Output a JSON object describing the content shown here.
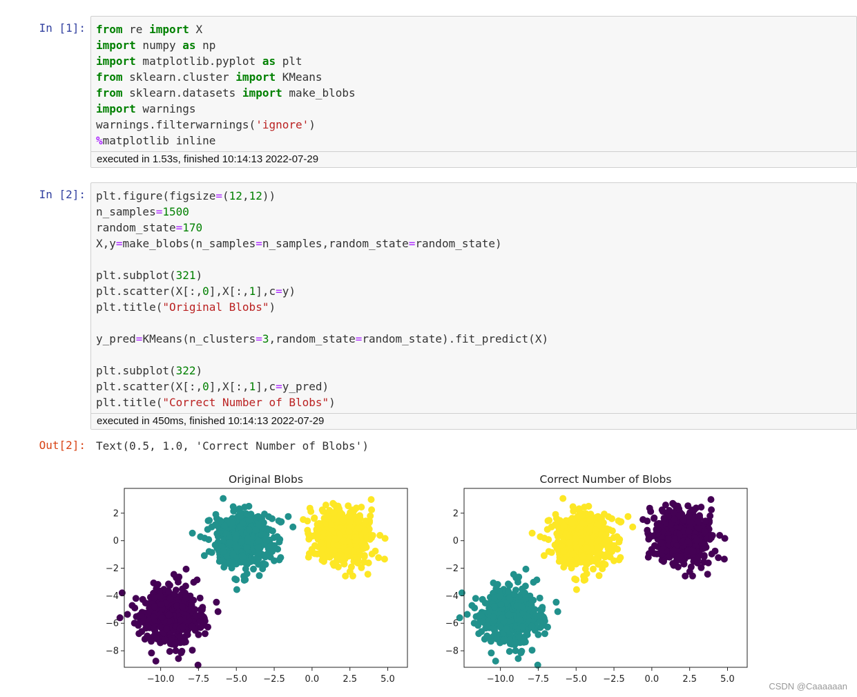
{
  "cells": [
    {
      "prompt": "In  [1]:",
      "lines": [
        [
          [
            "kw",
            "from"
          ],
          [
            "t",
            " re "
          ],
          [
            "kw",
            "import"
          ],
          [
            "t",
            " X"
          ]
        ],
        [
          [
            "kw",
            "import"
          ],
          [
            "t",
            " numpy "
          ],
          [
            "kw",
            "as"
          ],
          [
            "t",
            " np"
          ]
        ],
        [
          [
            "kw",
            "import"
          ],
          [
            "t",
            " matplotlib.pyplot "
          ],
          [
            "kw",
            "as"
          ],
          [
            "t",
            " plt"
          ]
        ],
        [
          [
            "kw",
            "from"
          ],
          [
            "t",
            " sklearn.cluster "
          ],
          [
            "kw",
            "import"
          ],
          [
            "t",
            " KMeans"
          ]
        ],
        [
          [
            "kw",
            "from"
          ],
          [
            "t",
            " sklearn.datasets "
          ],
          [
            "kw",
            "import"
          ],
          [
            "t",
            " make_blobs"
          ]
        ],
        [
          [
            "kw",
            "import"
          ],
          [
            "t",
            " warnings"
          ]
        ],
        [
          [
            "t",
            "warnings.filterwarnings("
          ],
          [
            "str",
            "'ignore'"
          ],
          [
            "t",
            ")"
          ]
        ],
        [
          [
            "magic",
            "%"
          ],
          [
            "t",
            "matplotlib inline"
          ]
        ]
      ],
      "exec": "executed in 1.53s, finished 10:14:13 2022-07-29"
    },
    {
      "prompt": "In  [2]:",
      "lines": [
        [
          [
            "t",
            "plt.figure(figsize"
          ],
          [
            "op",
            "="
          ],
          [
            "t",
            "("
          ],
          [
            "num",
            "12"
          ],
          [
            "t",
            ","
          ],
          [
            "num",
            "12"
          ],
          [
            "t",
            "))"
          ]
        ],
        [
          [
            "t",
            "n_samples"
          ],
          [
            "op",
            "="
          ],
          [
            "num",
            "1500"
          ]
        ],
        [
          [
            "t",
            "random_state"
          ],
          [
            "op",
            "="
          ],
          [
            "num",
            "170"
          ]
        ],
        [
          [
            "t",
            "X,y"
          ],
          [
            "op",
            "="
          ],
          [
            "t",
            "make_blobs(n_samples"
          ],
          [
            "op",
            "="
          ],
          [
            "t",
            "n_samples,random_state"
          ],
          [
            "op",
            "="
          ],
          [
            "t",
            "random_state)"
          ]
        ],
        [],
        [
          [
            "t",
            "plt.subplot("
          ],
          [
            "num",
            "321"
          ],
          [
            "t",
            ")"
          ]
        ],
        [
          [
            "t",
            "plt.scatter(X[:,"
          ],
          [
            "num",
            "0"
          ],
          [
            "t",
            "],X[:,"
          ],
          [
            "num",
            "1"
          ],
          [
            "t",
            "],c"
          ],
          [
            "op",
            "="
          ],
          [
            "t",
            "y)"
          ]
        ],
        [
          [
            "t",
            "plt.title("
          ],
          [
            "str",
            "\"Original Blobs\""
          ],
          [
            "t",
            ")"
          ]
        ],
        [],
        [
          [
            "t",
            "y_pred"
          ],
          [
            "op",
            "="
          ],
          [
            "t",
            "KMeans(n_clusters"
          ],
          [
            "op",
            "="
          ],
          [
            "num",
            "3"
          ],
          [
            "t",
            ",random_state"
          ],
          [
            "op",
            "="
          ],
          [
            "t",
            "random_state).fit_predict(X)"
          ]
        ],
        [],
        [
          [
            "t",
            "plt.subplot("
          ],
          [
            "num",
            "322"
          ],
          [
            "t",
            ")"
          ]
        ],
        [
          [
            "t",
            "plt.scatter(X[:,"
          ],
          [
            "num",
            "0"
          ],
          [
            "t",
            "],X[:,"
          ],
          [
            "num",
            "1"
          ],
          [
            "t",
            "],c"
          ],
          [
            "op",
            "="
          ],
          [
            "t",
            "y_pred)"
          ]
        ],
        [
          [
            "t",
            "plt.title("
          ],
          [
            "str",
            "\"Correct Number of Blobs\""
          ],
          [
            "t",
            ")"
          ]
        ]
      ],
      "exec": "executed in 450ms, finished 10:14:13 2022-07-29"
    }
  ],
  "output": {
    "prompt": "Out[2]:",
    "text": "Text(0.5, 1.0, 'Correct Number of Blobs')"
  },
  "colors": {
    "purple": "#440154",
    "teal": "#21918c",
    "yellow": "#fde725"
  },
  "chart_data": [
    {
      "type": "scatter",
      "title": "Original Blobs",
      "xlim": [
        -12.4,
        6.3
      ],
      "ylim": [
        -9.2,
        3.8
      ],
      "xticks": [
        -10.0,
        -7.5,
        -5.0,
        -2.5,
        0.0,
        2.5,
        5.0
      ],
      "xtick_labels": [
        "−10.0",
        "−7.5",
        "−5.0",
        "−2.5",
        "0.0",
        "2.5",
        "5.0"
      ],
      "yticks": [
        2,
        0,
        -2,
        -4,
        -6,
        -8
      ],
      "ytick_labels": [
        "2",
        "0",
        "−2",
        "−4",
        "−6",
        "−8"
      ],
      "grid": false,
      "series": [
        {
          "color": "#440154",
          "center": [
            -9.3,
            -5.5
          ],
          "spread": 1.0,
          "count": 500
        },
        {
          "color": "#21918c",
          "center": [
            -4.6,
            0.1
          ],
          "spread": 1.0,
          "count": 500
        },
        {
          "color": "#fde725",
          "center": [
            1.9,
            0.2
          ],
          "spread": 1.0,
          "count": 500
        }
      ]
    },
    {
      "type": "scatter",
      "title": "Correct Number of Blobs",
      "xlim": [
        -12.4,
        6.3
      ],
      "ylim": [
        -9.2,
        3.8
      ],
      "xticks": [
        -10.0,
        -7.5,
        -5.0,
        -2.5,
        0.0,
        2.5,
        5.0
      ],
      "xtick_labels": [
        "−10.0",
        "−7.5",
        "−5.0",
        "−2.5",
        "0.0",
        "2.5",
        "5.0"
      ],
      "yticks": [
        2,
        0,
        -2,
        -4,
        -6,
        -8
      ],
      "ytick_labels": [
        "2",
        "0",
        "−2",
        "−4",
        "−6",
        "−8"
      ],
      "grid": false,
      "series": [
        {
          "color": "#21918c",
          "center": [
            -9.3,
            -5.5
          ],
          "spread": 1.0,
          "count": 500
        },
        {
          "color": "#fde725",
          "center": [
            -4.6,
            0.1
          ],
          "spread": 1.0,
          "count": 500
        },
        {
          "color": "#440154",
          "center": [
            1.9,
            0.2
          ],
          "spread": 1.0,
          "count": 500
        }
      ]
    }
  ],
  "watermark": "CSDN @Caaaaaan"
}
